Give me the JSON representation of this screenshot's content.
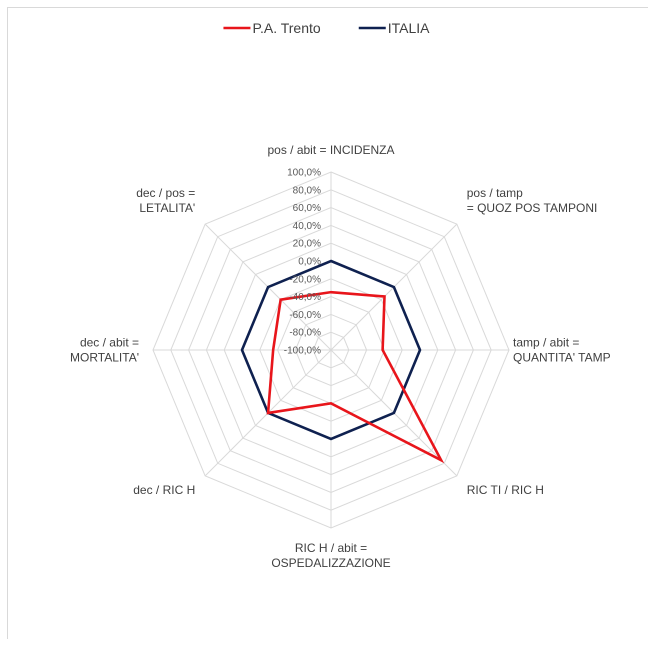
{
  "chart_data": {
    "type": "radar",
    "axes": [
      [
        "pos / abit = INCIDENZA"
      ],
      [
        "pos / tamp",
        "= QUOZ POS TAMPONI"
      ],
      [
        "tamp / abit =",
        "QUANTITA' TAMP"
      ],
      [
        "RIC TI / RIC H"
      ],
      [
        "RIC H / abit =",
        "OSPEDALIZZAZIONE"
      ],
      [
        "dec  / RIC H"
      ],
      [
        "dec / abit =",
        "MORTALITA'"
      ],
      [
        "dec / pos =",
        "LETALITA'"
      ]
    ],
    "tick_labels": [
      "100,0%",
      "80,0%",
      "60,0%",
      "40,0%",
      "20,0%",
      "0,0%",
      "-20,0%",
      "-40,0%",
      "-60,0%",
      "-80,0%",
      "-100,0%"
    ],
    "range": [
      -100,
      100
    ],
    "series": [
      {
        "name": "P.A. Trento",
        "color": "#e8151b",
        "values": [
          -35,
          -15,
          -42,
          75,
          -40,
          0,
          -35,
          -20
        ]
      },
      {
        "name": "ITALIA",
        "color": "#0f2150",
        "values": [
          0,
          0,
          0,
          0,
          0,
          0,
          0,
          0
        ]
      }
    ],
    "grid": true,
    "legend_position": "top"
  }
}
